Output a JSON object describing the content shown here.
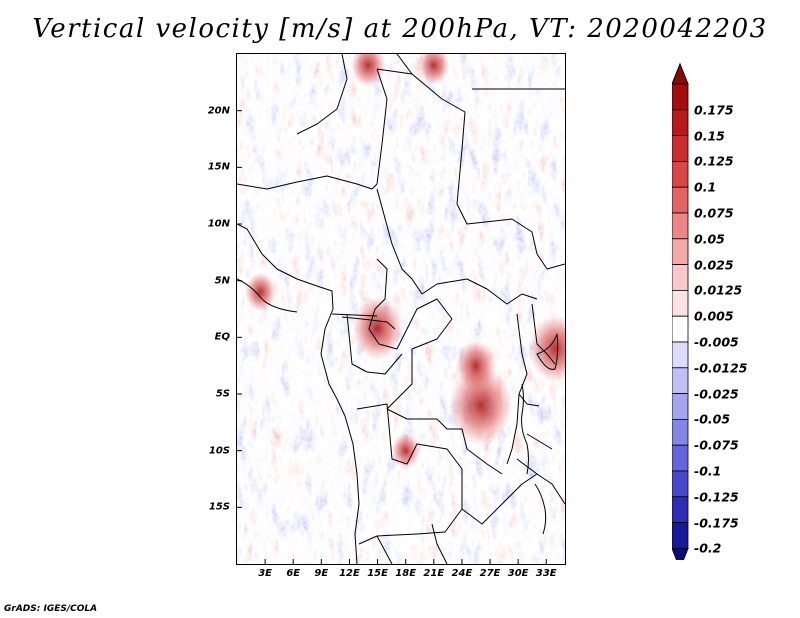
{
  "title": "Vertical velocity [m/s] at 200hPa, VT: 2020042203",
  "credit": "GrADS: IGES/COLA",
  "map": {
    "lat_range": [
      -20,
      25
    ],
    "lon_range": [
      0,
      35
    ],
    "lat_ticks": [
      {
        "lat": 20,
        "label": "20N"
      },
      {
        "lat": 15,
        "label": "15N"
      },
      {
        "lat": 10,
        "label": "10N"
      },
      {
        "lat": 5,
        "label": "5N"
      },
      {
        "lat": 0,
        "label": "EQ"
      },
      {
        "lat": -5,
        "label": "5S"
      },
      {
        "lat": -10,
        "label": "10S"
      },
      {
        "lat": -15,
        "label": "15S"
      }
    ],
    "lon_ticks": [
      {
        "lon": 3,
        "label": "3E"
      },
      {
        "lon": 6,
        "label": "6E"
      },
      {
        "lon": 9,
        "label": "9E"
      },
      {
        "lon": 12,
        "label": "12E"
      },
      {
        "lon": 15,
        "label": "15E"
      },
      {
        "lon": 18,
        "label": "18E"
      },
      {
        "lon": 21,
        "label": "21E"
      },
      {
        "lon": 24,
        "label": "24E"
      },
      {
        "lon": 27,
        "label": "27E"
      },
      {
        "lon": 30,
        "label": "30E"
      },
      {
        "lon": 33,
        "label": "33E"
      }
    ],
    "hotspots": [
      {
        "lon": 15,
        "lat": 0.8,
        "value": 0.12
      },
      {
        "lon": 26,
        "lat": -6,
        "value": 0.16
      },
      {
        "lon": 25.5,
        "lat": -2.5,
        "value": 0.09
      },
      {
        "lon": 34,
        "lat": -1,
        "value": 0.13
      },
      {
        "lon": 2.5,
        "lat": 4,
        "value": 0.06
      },
      {
        "lon": 18,
        "lat": -10,
        "value": 0.05
      },
      {
        "lon": 14,
        "lat": 24,
        "value": 0.07
      },
      {
        "lon": 21,
        "lat": 24,
        "value": 0.06
      }
    ]
  },
  "colorbar": {
    "levels": [
      {
        "label": "0.175",
        "color": "#a50c0c"
      },
      {
        "label": "0.15",
        "color": "#b8191b"
      },
      {
        "label": "0.125",
        "color": "#ca2d2d"
      },
      {
        "label": "0.1",
        "color": "#da4747"
      },
      {
        "label": "0.075",
        "color": "#e56565"
      },
      {
        "label": "0.05",
        "color": "#ee8686"
      },
      {
        "label": "0.025",
        "color": "#f5a8a8"
      },
      {
        "label": "0.0125",
        "color": "#f9c8c8"
      },
      {
        "label": "0.005",
        "color": "#fde3e3"
      },
      {
        "label": "-0.005",
        "color": "#ffffff"
      },
      {
        "label": "-0.0125",
        "color": "#dcdcfa"
      },
      {
        "label": "-0.025",
        "color": "#c0c0f4"
      },
      {
        "label": "-0.05",
        "color": "#a3a3ee"
      },
      {
        "label": "-0.075",
        "color": "#8585e6"
      },
      {
        "label": "-0.1",
        "color": "#6666dc"
      },
      {
        "label": "-0.125",
        "color": "#4848cc"
      },
      {
        "label": "-0.175",
        "color": "#2e2eb4"
      },
      {
        "label": "-0.2",
        "color": "#18189a"
      }
    ],
    "top_color": "#8a0a0a",
    "bottom_color": "#0c0c82"
  }
}
